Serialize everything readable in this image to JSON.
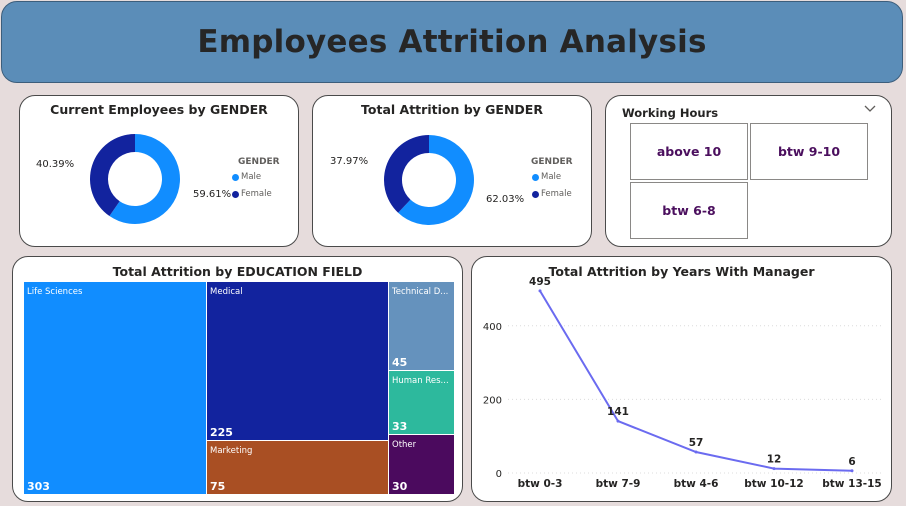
{
  "header": {
    "title": "Employees Attrition Analysis"
  },
  "donut_current": {
    "title": "Current Employees by GENDER",
    "legend_title": "GENDER",
    "legend": [
      "Male",
      "Female"
    ],
    "labels": {
      "male": "59.61%",
      "female": "40.39%"
    }
  },
  "donut_attrition": {
    "title": "Total Attrition by GENDER",
    "legend_title": "GENDER",
    "legend": [
      "Male",
      "Female"
    ],
    "labels": {
      "male": "62.03%",
      "female": "37.97%"
    }
  },
  "slicer": {
    "title": "Working Hours",
    "options": [
      "above 10",
      "btw 9-10",
      "btw 6-8"
    ]
  },
  "treemap": {
    "title": "Total Attrition by EDUCATION FIELD",
    "items": [
      {
        "name": "Life Sciences",
        "value": "303"
      },
      {
        "name": "Medical",
        "value": "225"
      },
      {
        "name": "Marketing",
        "value": "75"
      },
      {
        "name": "Technical D...",
        "value": "45"
      },
      {
        "name": "Human Res...",
        "value": "33"
      },
      {
        "name": "Other",
        "value": "30"
      }
    ]
  },
  "line": {
    "title": "Total Attrition by Years With Manager",
    "y_ticks": [
      "0",
      "200",
      "400"
    ]
  },
  "colors": {
    "male": "#118dff",
    "female": "#12239e",
    "marketing": "#a94f23",
    "technical": "#6592bd",
    "human_resources": "#2db99d",
    "other": "#4b0a5e",
    "line": "#6b6bf0"
  },
  "chart_data": [
    {
      "type": "pie",
      "title": "Current Employees by GENDER",
      "categories": [
        "Male",
        "Female"
      ],
      "values": [
        59.61,
        40.39
      ]
    },
    {
      "type": "pie",
      "title": "Total Attrition by GENDER",
      "categories": [
        "Male",
        "Female"
      ],
      "values": [
        62.03,
        37.97
      ]
    },
    {
      "type": "table",
      "title": "Total Attrition by EDUCATION FIELD",
      "categories": [
        "Life Sciences",
        "Medical",
        "Marketing",
        "Technical D...",
        "Human Res...",
        "Other"
      ],
      "values": [
        303,
        225,
        75,
        45,
        33,
        30
      ]
    },
    {
      "type": "line",
      "title": "Total Attrition by Years With Manager",
      "categories": [
        "btw 0-3",
        "btw 7-9",
        "btw 4-6",
        "btw 10-12",
        "btw 13-15"
      ],
      "values": [
        495,
        141,
        57,
        12,
        6
      ],
      "ylim": [
        0,
        500
      ],
      "grid": true
    }
  ]
}
